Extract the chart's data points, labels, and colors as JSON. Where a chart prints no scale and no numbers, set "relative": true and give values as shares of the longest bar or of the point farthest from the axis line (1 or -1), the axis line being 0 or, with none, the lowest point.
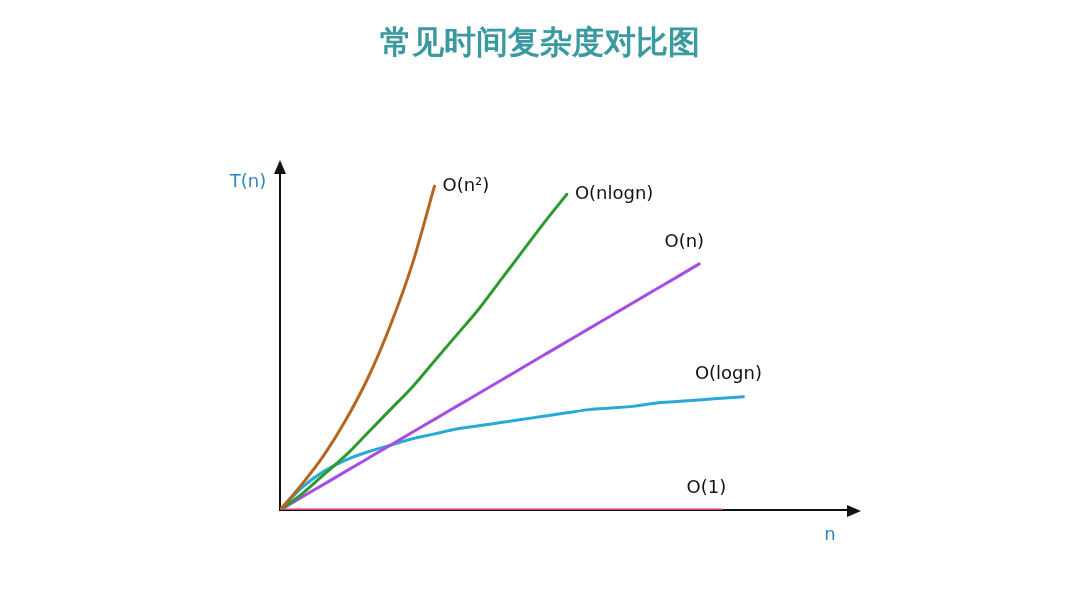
{
  "chart_data": {
    "type": "line",
    "title": "常见时间复杂度对比图",
    "xlabel": "n",
    "ylabel": "T(n)",
    "relative": true,
    "legend": false,
    "marker": "none",
    "line_style": "solid",
    "grid": false,
    "tick_labels": false,
    "categories": [
      null,
      null,
      null,
      null,
      null,
      null,
      null,
      null,
      null,
      null,
      null,
      null,
      null,
      null,
      null,
      null,
      null,
      null,
      null,
      null,
      null,
      null
    ],
    "series": [
      {
        "name": "O(n²)",
        "color": "#b5651d",
        "values": [
          0,
          0.08,
          0.17,
          0.28,
          0.41,
          0.57,
          0.76,
          1.0,
          null,
          null,
          null,
          null,
          null,
          null,
          null,
          null,
          null,
          null,
          null,
          null,
          null,
          null
        ]
      },
      {
        "name": "O(nlogn)",
        "color": "#2e9a2e",
        "values": [
          0,
          0.05,
          0.11,
          0.17,
          0.24,
          0.31,
          0.38,
          0.46,
          0.54,
          0.62,
          0.71,
          0.8,
          0.89,
          0.975,
          null,
          null,
          null,
          null,
          null,
          null,
          null,
          null
        ]
      },
      {
        "name": "O(n)",
        "color": "#a64de6",
        "values": [
          0,
          0.04,
          0.08,
          0.12,
          0.16,
          0.2,
          0.24,
          0.28,
          0.32,
          0.36,
          0.4,
          0.44,
          0.48,
          0.52,
          0.56,
          0.6,
          0.64,
          0.68,
          0.72,
          0.76,
          null,
          null
        ]
      },
      {
        "name": "O(logn)",
        "color": "#2aa8d6",
        "values": [
          0,
          0.07,
          0.12,
          0.155,
          0.18,
          0.2,
          0.22,
          0.235,
          0.25,
          0.26,
          0.27,
          0.28,
          0.29,
          0.3,
          0.31,
          0.315,
          0.32,
          0.33,
          0.335,
          0.34,
          0.345,
          0.35
        ]
      },
      {
        "name": "O(1)",
        "color": "#e0407a",
        "values": [
          0,
          0,
          0,
          0,
          0,
          0,
          0,
          0,
          0,
          0,
          0,
          0,
          0,
          0,
          0,
          0,
          0,
          0,
          0,
          0,
          0,
          null
        ]
      }
    ]
  }
}
